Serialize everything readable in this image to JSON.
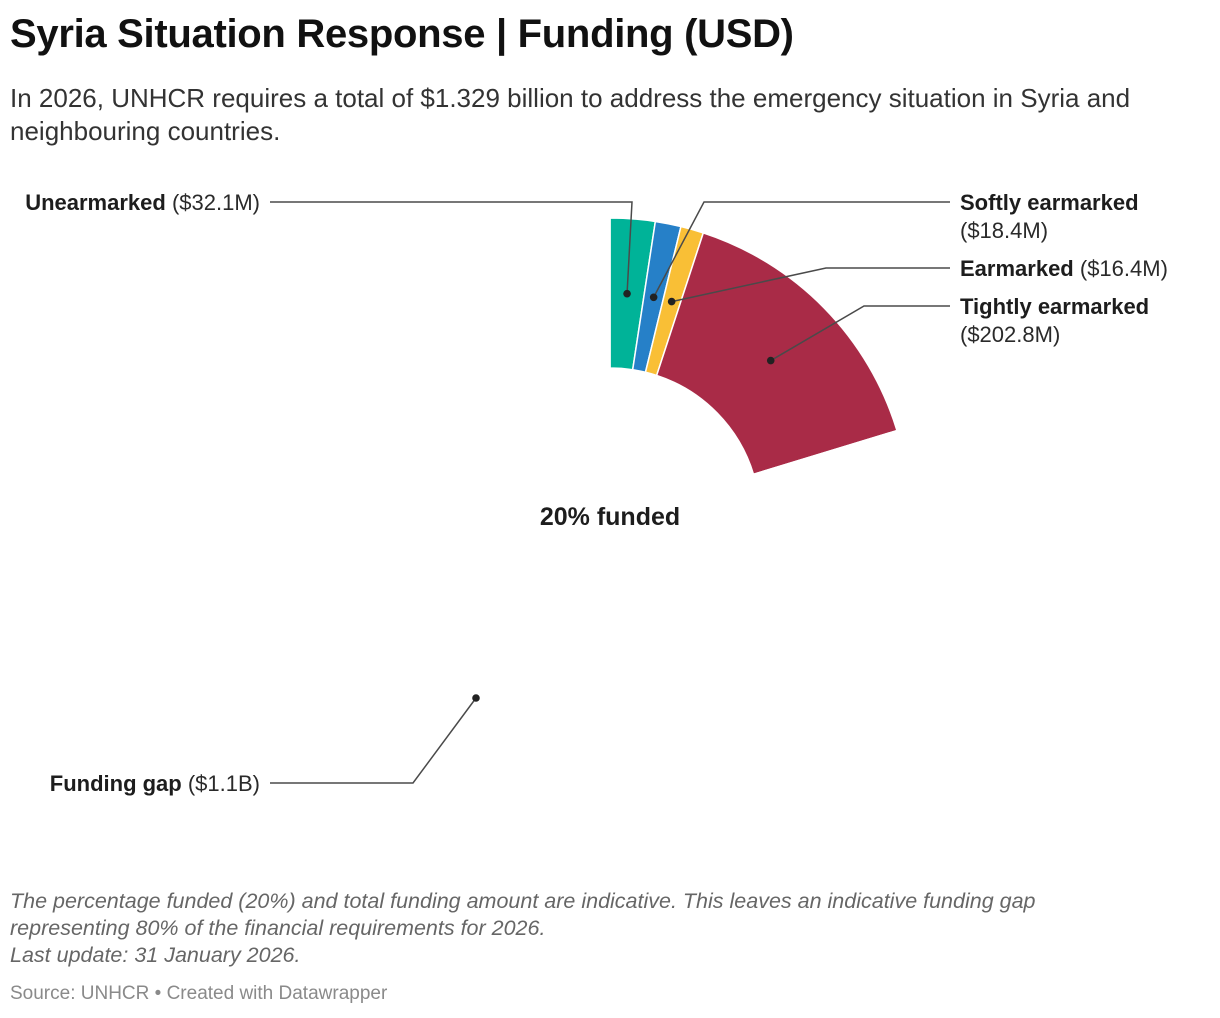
{
  "chart_data": {
    "type": "pie",
    "variant": "half-donut",
    "title": "Syria Situation Response | Funding (USD)",
    "subtitle": "In 2026, UNHCR requires a total of $1.329 billion to address the emergency situation in Syria and neighbouring countries.",
    "center_label": "20% funded",
    "total_requirement_usd_millions": 1329,
    "slices": [
      {
        "name": "Unearmarked",
        "value_label": "($32.1M)",
        "value": 32.1,
        "color": "#00b398"
      },
      {
        "name": "Softly earmarked",
        "value_label": "($18.4M)",
        "value": 18.4,
        "color": "#2680c8"
      },
      {
        "name": "Earmarked",
        "value_label": "($16.4M)",
        "value": 16.4,
        "color": "#f9bf36"
      },
      {
        "name": "Tightly earmarked",
        "value_label": "($202.8M)",
        "value": 202.8,
        "color": "#a92b47"
      },
      {
        "name": "Funding gap",
        "value_label": "($1.1B)",
        "value": 1059.3,
        "color": "#ffffff"
      }
    ],
    "notes": [
      "The percentage funded (20%) and total funding amount are indicative. This leaves an indicative funding gap",
      "representing 80% of the financial requirements for 2026.",
      "Last update: 31 January 2026."
    ],
    "source": "Source: UNHCR • Created with Datawrapper"
  }
}
